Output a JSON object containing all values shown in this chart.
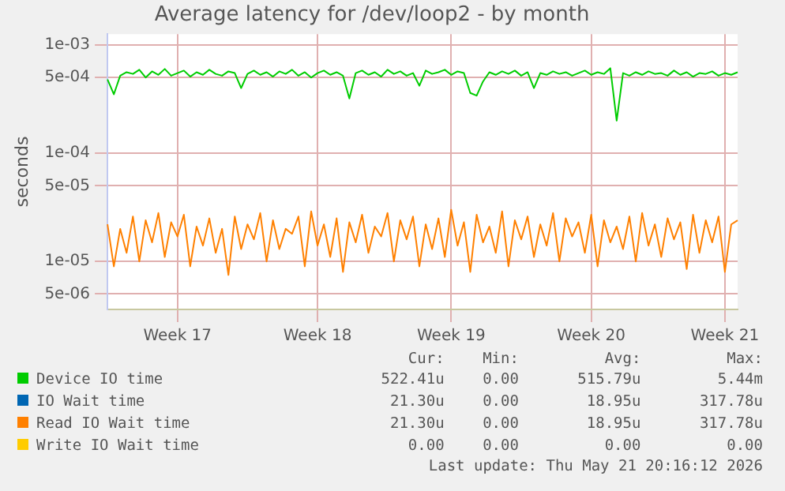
{
  "chart_data": {
    "type": "line",
    "title": "Average latency for /dev/loop2 - by month",
    "ylabel": "seconds",
    "log": "y",
    "grid": true,
    "legend": "bottom",
    "marker": "none",
    "line_style": "solid",
    "categories": [
      null,
      null,
      null,
      null,
      null,
      null,
      null,
      null,
      null,
      null,
      null,
      "Week 17",
      null,
      null,
      null,
      null,
      null,
      null,
      null,
      null,
      null,
      null,
      null,
      null,
      null,
      null,
      null,
      null,
      null,
      null,
      null,
      null,
      null,
      "Week 18",
      null,
      null,
      null,
      null,
      null,
      null,
      null,
      null,
      null,
      null,
      null,
      null,
      null,
      null,
      null,
      null,
      null,
      null,
      null,
      null,
      "Week 19",
      null,
      null,
      null,
      null,
      null,
      null,
      null,
      null,
      null,
      null,
      null,
      null,
      null,
      null,
      null,
      null,
      null,
      null,
      null,
      null,
      null,
      "Week 20",
      null,
      null,
      null,
      null,
      null,
      null,
      null,
      null,
      null,
      null,
      null,
      null,
      null,
      null,
      null,
      null,
      null,
      null,
      null,
      null,
      "Week 21",
      null,
      null
    ],
    "ylim": [
      3.6e-06,
      0.00126
    ],
    "yticks": [
      {
        "value": 5e-06,
        "label": "5e-06"
      },
      {
        "value": 1e-05,
        "label": "1e-05"
      },
      {
        "value": 5e-05,
        "label": "5e-05"
      },
      {
        "value": 0.0001,
        "label": "1e-04"
      },
      {
        "value": 0.0005,
        "label": "5e-04"
      },
      {
        "value": 0.001,
        "label": "1e-03"
      }
    ],
    "series": [
      {
        "name": "Device IO time",
        "color": "#00cc00",
        "values": [
          0.00048,
          0.00035,
          0.00052,
          0.00056,
          0.00054,
          0.00059,
          0.0005,
          0.00057,
          0.00053,
          0.0006,
          0.00052,
          0.00055,
          0.00058,
          0.00051,
          0.00056,
          0.00053,
          0.00059,
          0.00054,
          0.00052,
          0.00057,
          0.00055,
          0.0004,
          0.00054,
          0.00058,
          0.00053,
          0.00056,
          0.00051,
          0.00057,
          0.00054,
          0.00059,
          0.00052,
          0.00056,
          0.0005,
          0.00055,
          0.00058,
          0.00053,
          0.00056,
          0.00052,
          0.00032,
          0.00055,
          0.00058,
          0.00053,
          0.00056,
          0.00051,
          0.00059,
          0.00054,
          0.00057,
          0.00052,
          0.00055,
          0.00042,
          0.00058,
          0.00054,
          0.00056,
          0.00059,
          0.00053,
          0.00057,
          0.00055,
          0.00036,
          0.00034,
          0.00046,
          0.00056,
          0.00053,
          0.00057,
          0.00054,
          0.00058,
          0.00052,
          0.00056,
          0.0004,
          0.00055,
          0.00053,
          0.00057,
          0.00054,
          0.00056,
          0.00052,
          0.00055,
          0.00058,
          0.00053,
          0.00056,
          0.00054,
          0.00061,
          0.0002,
          0.00055,
          0.00052,
          0.00056,
          0.00053,
          0.00057,
          0.00054,
          0.00055,
          0.00052,
          0.00058,
          0.00053,
          0.00056,
          0.00051,
          0.00055,
          0.00054,
          0.00057,
          0.00052,
          0.00055,
          0.00053,
          0.00056
        ]
      },
      {
        "name": "IO Wait time",
        "color": "#0066b3",
        "values": [
          null,
          null,
          null,
          null,
          null,
          null,
          null,
          null,
          null,
          null,
          null,
          null,
          null,
          null,
          null,
          null,
          null,
          null,
          null,
          null,
          null,
          null,
          null,
          null,
          null,
          null,
          null,
          null,
          null,
          null,
          null,
          null,
          null,
          null,
          null,
          null,
          null,
          null,
          null,
          null,
          null,
          null,
          null,
          null,
          null,
          null,
          null,
          null,
          null,
          null,
          null,
          null,
          null,
          null,
          null,
          null,
          null,
          null,
          null,
          null,
          null,
          null,
          null,
          null,
          null,
          null,
          null,
          null,
          null,
          null,
          null,
          null,
          null,
          null,
          null,
          null,
          null,
          null,
          null,
          null,
          null,
          null,
          null,
          null,
          null,
          null,
          null,
          null,
          null,
          null,
          null,
          null,
          null,
          null,
          null,
          null,
          null,
          null,
          null,
          null
        ]
      },
      {
        "name": "Read IO Wait time",
        "color": "#ff8000",
        "values": [
          2.2e-05,
          9e-06,
          2e-05,
          1.2e-05,
          2.6e-05,
          1e-05,
          2.4e-05,
          1.5e-05,
          2.8e-05,
          1.1e-05,
          2.3e-05,
          1.7e-05,
          2.7e-05,
          9e-06,
          2.1e-05,
          1.4e-05,
          2.5e-05,
          1.2e-05,
          2e-05,
          7.5e-06,
          2.6e-05,
          1.3e-05,
          2.2e-05,
          1.6e-05,
          2.8e-05,
          1e-05,
          2.4e-05,
          1.3e-05,
          2e-05,
          1.8e-05,
          2.6e-05,
          9e-06,
          2.9e-05,
          1.4e-05,
          2.2e-05,
          1.1e-05,
          2.5e-05,
          8e-06,
          2.3e-05,
          1.5e-05,
          2.7e-05,
          1.2e-05,
          2.1e-05,
          1.7e-05,
          2.8e-05,
          1e-05,
          2.4e-05,
          1.6e-05,
          2.6e-05,
          9e-06,
          2.2e-05,
          1.3e-05,
          2.5e-05,
          1.1e-05,
          3e-05,
          1.4e-05,
          2.3e-05,
          8e-06,
          2.7e-05,
          1.5e-05,
          2.1e-05,
          1.2e-05,
          2.9e-05,
          9e-06,
          2.4e-05,
          1.6e-05,
          2.6e-05,
          1.1e-05,
          2.2e-05,
          1.4e-05,
          2.8e-05,
          1e-05,
          2.5e-05,
          1.7e-05,
          2.3e-05,
          1.2e-05,
          2.7e-05,
          9e-06,
          2.4e-05,
          1.5e-05,
          2.1e-05,
          1.3e-05,
          2.6e-05,
          1e-05,
          2.8e-05,
          1.4e-05,
          2.2e-05,
          1.1e-05,
          2.5e-05,
          1.6e-05,
          2.3e-05,
          8.5e-06,
          2.7e-05,
          1.2e-05,
          2.4e-05,
          1.5e-05,
          2.6e-05,
          8e-06,
          2.2e-05,
          2.4e-05
        ]
      },
      {
        "name": "Write IO Wait time",
        "color": "#ffcc00",
        "values": [
          null,
          null,
          null,
          null,
          null,
          null,
          null,
          null,
          null,
          null,
          null,
          null,
          null,
          null,
          null,
          null,
          null,
          null,
          null,
          null,
          null,
          null,
          null,
          null,
          null,
          null,
          null,
          null,
          null,
          null,
          null,
          null,
          null,
          null,
          null,
          null,
          null,
          null,
          null,
          null,
          null,
          null,
          null,
          null,
          null,
          null,
          null,
          null,
          null,
          null,
          null,
          null,
          null,
          null,
          null,
          null,
          null,
          null,
          null,
          null,
          null,
          null,
          null,
          null,
          null,
          null,
          null,
          null,
          null,
          null,
          null,
          null,
          null,
          null,
          null,
          null,
          null,
          null,
          null,
          null,
          null,
          null,
          null,
          null,
          null,
          null,
          null,
          null,
          null,
          null,
          null,
          null,
          null,
          null,
          null,
          null,
          null,
          null,
          null,
          null
        ]
      }
    ],
    "annotations": [
      "Cur:",
      "Min:",
      "Avg:",
      "Max:",
      "522.41u",
      "0.00",
      "515.79u",
      "5.44m",
      "21.30u",
      "0.00",
      "18.95u",
      "317.78u",
      "21.30u",
      "0.00",
      "18.95u",
      "317.78u",
      "0.00",
      "0.00",
      "0.00",
      "0.00",
      "Last update: Thu May 21 20:16:12 2026"
    ]
  }
}
